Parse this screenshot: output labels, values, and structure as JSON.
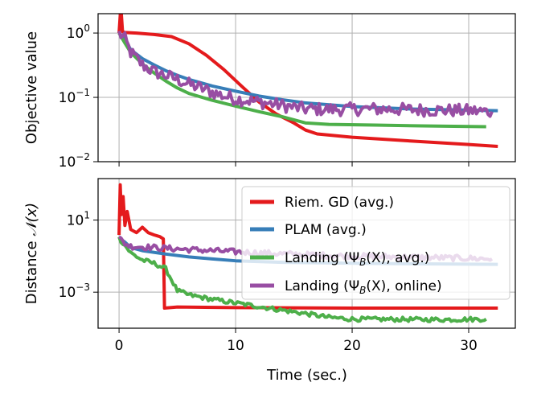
{
  "chart_data": [
    {
      "type": "line",
      "id": "top",
      "ylabel": "Objective value",
      "yscale": "log",
      "ylim": [
        0.01,
        2.0
      ],
      "xlim": [
        -1.8,
        34.0
      ],
      "yticks": [
        {
          "value": 0.01,
          "base": "10",
          "exp": "−2"
        },
        {
          "value": 0.1,
          "base": "10",
          "exp": "−1"
        },
        {
          "value": 1,
          "base": "10",
          "exp": "0"
        }
      ],
      "grid": true,
      "series": [
        {
          "name": "Riem. GD (avg.)",
          "color": "#e41a1c",
          "width": 4,
          "jitter": 0,
          "points": [
            [
              0,
              1.0
            ],
            [
              0.15,
              2.6
            ],
            [
              0.3,
              1.05
            ],
            [
              0.5,
              1.02
            ],
            [
              1.5,
              1.0
            ],
            [
              3,
              0.95
            ],
            [
              4.5,
              0.88
            ],
            [
              6,
              0.68
            ],
            [
              7.5,
              0.45
            ],
            [
              9,
              0.27
            ],
            [
              10.5,
              0.15
            ],
            [
              12,
              0.085
            ],
            [
              13.5,
              0.055
            ],
            [
              15,
              0.04
            ],
            [
              16,
              0.031
            ],
            [
              17,
              0.027
            ],
            [
              20,
              0.024
            ],
            [
              25,
              0.021
            ],
            [
              30,
              0.0185
            ],
            [
              32.5,
              0.0173
            ]
          ]
        },
        {
          "name": "PLAM (avg.)",
          "color": "#377eb8",
          "width": 4,
          "jitter": 0,
          "points": [
            [
              0,
              1.0
            ],
            [
              0.5,
              0.8
            ],
            [
              1,
              0.55
            ],
            [
              2,
              0.4
            ],
            [
              3,
              0.32
            ],
            [
              4,
              0.26
            ],
            [
              5,
              0.22
            ],
            [
              6,
              0.19
            ],
            [
              8,
              0.15
            ],
            [
              10,
              0.125
            ],
            [
              12,
              0.105
            ],
            [
              14,
              0.092
            ],
            [
              16,
              0.082
            ],
            [
              20,
              0.072
            ],
            [
              25,
              0.066
            ],
            [
              32.5,
              0.062
            ]
          ]
        },
        {
          "name": "Landing (Ψ_B(X), avg.)",
          "color": "#4daf4a",
          "width": 4,
          "jitter": 0,
          "points": [
            [
              0,
              1.0
            ],
            [
              0.5,
              0.7
            ],
            [
              1,
              0.5
            ],
            [
              2,
              0.33
            ],
            [
              3,
              0.24
            ],
            [
              4,
              0.18
            ],
            [
              5,
              0.14
            ],
            [
              6,
              0.115
            ],
            [
              8,
              0.09
            ],
            [
              10,
              0.073
            ],
            [
              12,
              0.06
            ],
            [
              14,
              0.05
            ],
            [
              16,
              0.04
            ],
            [
              18,
              0.038
            ],
            [
              22,
              0.037
            ],
            [
              26,
              0.036
            ],
            [
              31.5,
              0.035
            ]
          ]
        },
        {
          "name": "Landing (Ψ_B(X), online)",
          "color": "#984ea3",
          "width": 4,
          "jitter": 0.1,
          "points": [
            [
              0,
              1.0
            ],
            [
              0.5,
              0.8
            ],
            [
              1,
              0.5
            ],
            [
              2,
              0.32
            ],
            [
              3,
              0.25
            ],
            [
              4,
              0.22
            ],
            [
              5,
              0.19
            ],
            [
              6,
              0.16
            ],
            [
              7,
              0.14
            ],
            [
              8,
              0.12
            ],
            [
              9,
              0.105
            ],
            [
              10,
              0.095
            ],
            [
              11,
              0.09
            ],
            [
              12,
              0.085
            ],
            [
              13,
              0.08
            ],
            [
              14,
              0.075
            ],
            [
              15,
              0.07
            ],
            [
              16,
              0.066
            ],
            [
              18,
              0.065
            ],
            [
              22,
              0.066
            ],
            [
              26,
              0.064
            ],
            [
              30,
              0.062
            ],
            [
              32,
              0.06
            ]
          ]
        }
      ]
    },
    {
      "type": "line",
      "id": "bottom",
      "ylabel": "Distance 𝒩(x)",
      "xlabel": "Time (sec.)",
      "yscale": "log",
      "ylim": [
        1e-05,
        2000
      ],
      "xlim": [
        -1.8,
        34.0
      ],
      "xticks": [
        0,
        10,
        20,
        30
      ],
      "xticklabels": [
        "0",
        "10",
        "20",
        "30"
      ],
      "yticks": [
        {
          "value": 0.001,
          "base": "10",
          "exp": "−3"
        },
        {
          "value": 10,
          "base": "10",
          "exp": "1"
        }
      ],
      "grid": true,
      "series": [
        {
          "name": "Riem. GD (avg.)",
          "color": "#e41a1c",
          "width": 4,
          "jitter": 0,
          "points": [
            [
              0,
              1.5
            ],
            [
              0.1,
              900
            ],
            [
              0.2,
              20
            ],
            [
              0.35,
              200
            ],
            [
              0.5,
              5
            ],
            [
              0.7,
              30
            ],
            [
              1,
              3
            ],
            [
              1.5,
              2
            ],
            [
              2,
              4
            ],
            [
              2.5,
              2
            ],
            [
              3,
              1.5
            ],
            [
              3.5,
              1.2
            ],
            [
              3.8,
              0.9
            ],
            [
              3.9,
              0.00013
            ],
            [
              5,
              0.00015
            ],
            [
              10,
              0.00014
            ],
            [
              20,
              0.00013
            ],
            [
              30,
              0.00013
            ],
            [
              32.5,
              0.00013
            ]
          ]
        },
        {
          "name": "PLAM (avg.)",
          "color": "#377eb8",
          "width": 4,
          "jitter": 0,
          "points": [
            [
              0,
              1.0
            ],
            [
              0.5,
              0.6
            ],
            [
              1,
              0.3
            ],
            [
              2,
              0.2
            ],
            [
              4,
              0.13
            ],
            [
              6,
              0.09
            ],
            [
              8,
              0.07
            ],
            [
              10,
              0.055
            ],
            [
              14,
              0.045
            ],
            [
              20,
              0.04
            ],
            [
              26,
              0.037
            ],
            [
              32.5,
              0.035
            ]
          ]
        },
        {
          "name": "Landing (Ψ_B(X), avg.)",
          "color": "#4daf4a",
          "width": 4,
          "jitter": 0.12,
          "points": [
            [
              0,
              1.0
            ],
            [
              0.5,
              0.4
            ],
            [
              1,
              0.15
            ],
            [
              2,
              0.06
            ],
            [
              3,
              0.04
            ],
            [
              4,
              0.02
            ],
            [
              5,
              0.0012
            ],
            [
              6,
              0.0007
            ],
            [
              8,
              0.0004
            ],
            [
              10,
              0.00025
            ],
            [
              12,
              0.00016
            ],
            [
              14,
              0.0001
            ],
            [
              16,
              6.5e-05
            ],
            [
              18,
              4e-05
            ],
            [
              20,
              3.2e-05
            ],
            [
              24,
              3.1e-05
            ],
            [
              28,
              3e-05
            ],
            [
              31.5,
              3.2e-05
            ]
          ]
        },
        {
          "name": "Landing (Ψ_B(X), online)",
          "color": "#984ea3",
          "width": 4,
          "jitter": 0.16,
          "points": [
            [
              0,
              1.0
            ],
            [
              0.5,
              0.5
            ],
            [
              1,
              0.35
            ],
            [
              3,
              0.3
            ],
            [
              5,
              0.25
            ],
            [
              8,
              0.2
            ],
            [
              12,
              0.15
            ],
            [
              16,
              0.12
            ],
            [
              20,
              0.1
            ],
            [
              24,
              0.09
            ],
            [
              28,
              0.08
            ],
            [
              32,
              0.07
            ]
          ]
        }
      ],
      "legend": {
        "placement": "upper-right",
        "entries": [
          {
            "label": "Riem. GD (avg.)",
            "color": "#e41a1c"
          },
          {
            "label": "PLAM (avg.)",
            "color": "#377eb8"
          },
          {
            "label": "Landing (Ψ_B(X), avg.)",
            "color": "#4daf4a"
          },
          {
            "label": "Landing (Ψ_B(X), online)",
            "color": "#984ea3"
          }
        ]
      }
    }
  ],
  "labels": {
    "top_ylabel": "Objective value",
    "bottom_ylabel_main": "Distance ",
    "bottom_ylabel_sym": "𝒩(x)",
    "xlabel": "Time (sec.)"
  },
  "legend_text": {
    "riem": "Riem. GD (avg.)",
    "plam": "PLAM (avg.)",
    "land_avg_a": "Landing (Ψ",
    "land_avg_sub": "B",
    "land_avg_b": "(X), avg.)",
    "land_on_a": "Landing (Ψ",
    "land_on_sub": "B",
    "land_on_b": "(X), online)"
  }
}
